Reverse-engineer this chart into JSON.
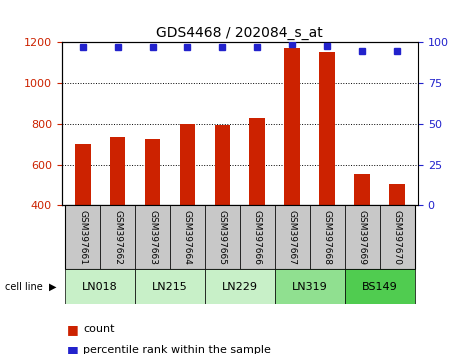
{
  "title": "GDS4468 / 202084_s_at",
  "samples": [
    "GSM397661",
    "GSM397662",
    "GSM397663",
    "GSM397664",
    "GSM397665",
    "GSM397666",
    "GSM397667",
    "GSM397668",
    "GSM397669",
    "GSM397670"
  ],
  "counts": [
    700,
    735,
    725,
    800,
    795,
    830,
    1175,
    1155,
    555,
    505
  ],
  "percentiles": [
    97,
    97,
    97,
    97,
    97,
    97,
    99,
    98,
    95,
    95
  ],
  "cell_lines": [
    {
      "name": "LN018",
      "samples": [
        0,
        1
      ],
      "color": "#c8f0c8"
    },
    {
      "name": "LN215",
      "samples": [
        2,
        3
      ],
      "color": "#c8f0c8"
    },
    {
      "name": "LN229",
      "samples": [
        4,
        5
      ],
      "color": "#c8f0c8"
    },
    {
      "name": "LN319",
      "samples": [
        6,
        7
      ],
      "color": "#90e090"
    },
    {
      "name": "BS149",
      "samples": [
        8,
        9
      ],
      "color": "#50cc50"
    }
  ],
  "ylim_left": [
    400,
    1200
  ],
  "ylim_right": [
    0,
    100
  ],
  "bar_color": "#cc2200",
  "dot_color": "#2222cc",
  "bar_width": 0.45,
  "bg_color": "#c8c8c8",
  "plot_bg": "#ffffff",
  "ylabel_left_color": "#cc2200",
  "ylabel_right_color": "#2222cc",
  "yticks_left": [
    400,
    600,
    800,
    1000,
    1200
  ],
  "yticks_right": [
    0,
    25,
    50,
    75,
    100
  ],
  "legend_count_label": "count",
  "legend_pct_label": "percentile rank within the sample"
}
